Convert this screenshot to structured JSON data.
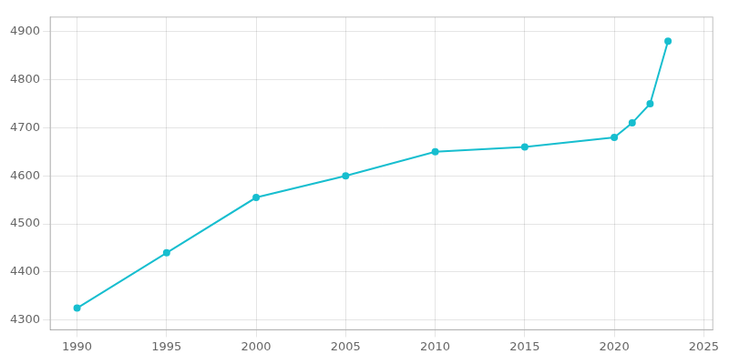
{
  "chart_data": {
    "type": "line",
    "x": [
      1990,
      1995,
      2000,
      2005,
      2010,
      2015,
      2020,
      2021,
      2022,
      2023
    ],
    "values": [
      4325,
      4440,
      4555,
      4600,
      4650,
      4660,
      4680,
      4710,
      4750,
      4880
    ],
    "color": "#17becf",
    "marker": "circle",
    "xlim": [
      1988.5,
      2025.5
    ],
    "xticks": [
      1990,
      1995,
      2000,
      2005,
      2010,
      2015,
      2020,
      2025
    ],
    "ylim": [
      4280,
      4930
    ],
    "yticks": [
      4300,
      4400,
      4500,
      4600,
      4700,
      4800,
      4900
    ],
    "grid": true
  }
}
